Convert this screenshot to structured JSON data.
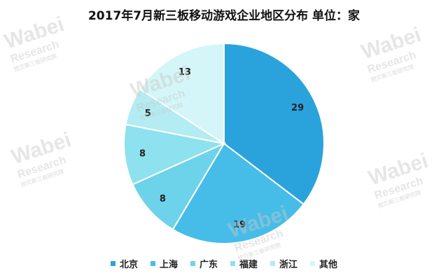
{
  "chart_data": {
    "type": "pie",
    "title": "2017年7月新三板移动游戏企业地区分布 单位：家",
    "slices": [
      {
        "label": "北京",
        "value": 29,
        "color": "#2aa3dc"
      },
      {
        "label": "上海",
        "value": 19,
        "color": "#45bde8"
      },
      {
        "label": "广东",
        "value": 8,
        "color": "#6dd3ea"
      },
      {
        "label": "福建",
        "value": 8,
        "color": "#8ee1ee"
      },
      {
        "label": "浙江",
        "value": 5,
        "color": "#b3ecf2"
      },
      {
        "label": "其他",
        "value": 13,
        "color": "#d4f6f8"
      }
    ],
    "legend_position": "bottom"
  },
  "watermark": {
    "brand": "Wabei",
    "sub": "Research",
    "cn": "挖贝新三板研究院"
  }
}
